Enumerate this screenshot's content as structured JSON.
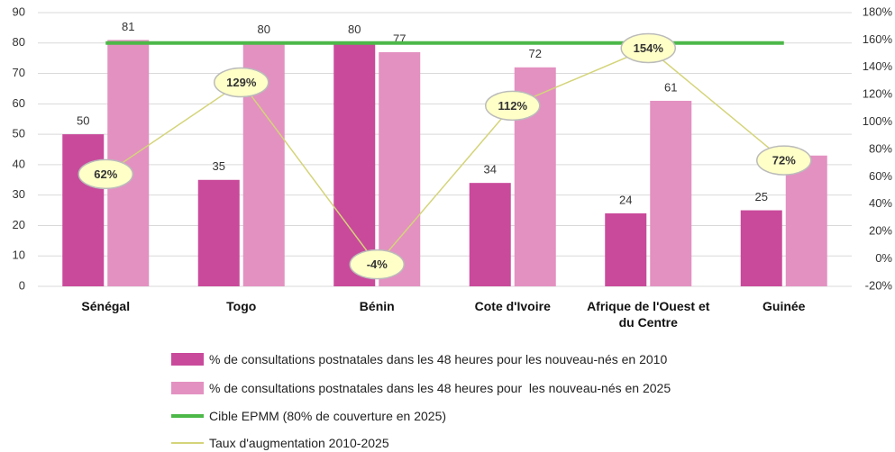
{
  "chart_data": {
    "type": "bar",
    "categories": [
      "Sénégal",
      "Togo",
      "Bénin",
      "Cote d'Ivoire",
      "Afrique de l'Ouest et du Centre",
      "Guinée"
    ],
    "series": [
      {
        "name": "% de consultations postnatales dans les 48 heures pour les nouveau-nés en 2010",
        "type": "bar",
        "color": "#c94a9b",
        "values": [
          50,
          35,
          80,
          34,
          24,
          25
        ]
      },
      {
        "name": "% de consultations postnatales dans les 48 heures pour  les nouveau-nés en 2025",
        "type": "bar",
        "color": "#e391c1",
        "values": [
          81,
          80,
          77,
          72,
          61,
          43
        ],
        "value_labels": [
          "81",
          "80",
          "77",
          "72",
          "61",
          null
        ]
      },
      {
        "name": "Cible EPMM (80% de couverture en 2025)",
        "type": "line",
        "color": "#4cb848",
        "values": [
          80,
          80,
          80,
          80,
          80,
          80
        ]
      },
      {
        "name": "Taux d'augmentation 2010-2025",
        "type": "line",
        "axis": "y2",
        "color": "#d4d47a",
        "values": [
          62,
          129,
          -4,
          112,
          154,
          72
        ],
        "value_labels": [
          "62%",
          "129%",
          "-4%",
          "112%",
          "154%",
          "72%"
        ]
      }
    ],
    "ylim": [
      0,
      90
    ],
    "yticks": [
      0,
      10,
      20,
      30,
      40,
      50,
      60,
      70,
      80,
      90
    ],
    "y2lim": [
      -20,
      180
    ],
    "y2ticks": [
      {
        "value": -20,
        "label": "-20%"
      },
      {
        "value": 0,
        "label": "0%"
      },
      {
        "value": 20,
        "label": "20%"
      },
      {
        "value": 40,
        "label": "40%"
      },
      {
        "value": 60,
        "label": "60%"
      },
      {
        "value": 80,
        "label": "80%"
      },
      {
        "value": 100,
        "label": "100%"
      },
      {
        "value": 120,
        "label": "120%"
      },
      {
        "value": 140,
        "label": "140%"
      },
      {
        "value": 160,
        "label": "160%"
      },
      {
        "value": 180,
        "label": "180%"
      }
    ],
    "grid": true
  }
}
